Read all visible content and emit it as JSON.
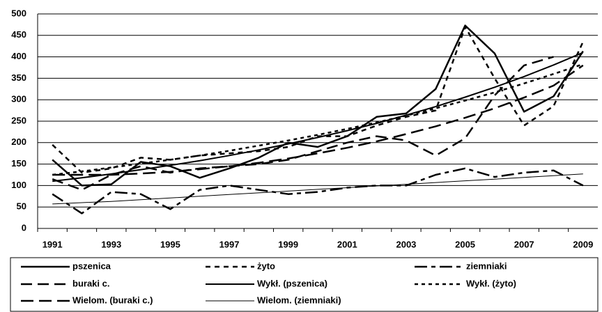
{
  "chart_data": {
    "type": "line",
    "categories": [
      "1991",
      null,
      "1993",
      null,
      "1995",
      null,
      "1997",
      null,
      "1999",
      null,
      "2001",
      null,
      "2003",
      null,
      "2005",
      null,
      "2007",
      null,
      "2009"
    ],
    "ylim": [
      0,
      500
    ],
    "yticks": [
      0,
      50,
      100,
      150,
      200,
      250,
      300,
      350,
      400,
      450,
      500
    ],
    "grid": true,
    "series": [
      {
        "name": "pszenica",
        "color": "#000000",
        "dash": "none",
        "width": 2.5,
        "values": [
          160,
          100,
          103,
          155,
          145,
          118,
          140,
          165,
          200,
          190,
          215,
          260,
          268,
          325,
          473,
          408,
          272,
          308,
          413
        ]
      },
      {
        "name": "żyto",
        "color": "#000000",
        "dash": "7 6",
        "width": 2.5,
        "values": [
          195,
          130,
          140,
          165,
          160,
          170,
          175,
          180,
          190,
          215,
          215,
          240,
          260,
          275,
          470,
          350,
          240,
          285,
          435
        ]
      },
      {
        "name": "ziemniaki",
        "color": "#000000",
        "dash": "18 6 6 6",
        "width": 2.5,
        "values": [
          80,
          35,
          85,
          80,
          45,
          90,
          100,
          90,
          80,
          85,
          95,
          100,
          100,
          125,
          140,
          120,
          130,
          135,
          100
        ]
      },
      {
        "name": "buraki c.",
        "color": "#000000",
        "dash": "16 8",
        "width": 2.5,
        "values": [
          115,
          90,
          125,
          145,
          130,
          140,
          145,
          150,
          160,
          180,
          200,
          215,
          205,
          170,
          210,
          310,
          380,
          400,
          null
        ]
      },
      {
        "name": "Wykł. (pszenica)",
        "color": "#000000",
        "dash": "none",
        "width": 2,
        "values": [
          110,
          118,
          127,
          137,
          147,
          158,
          170,
          183,
          197,
          212,
          228,
          245,
          264,
          284,
          306,
          329,
          354,
          381,
          410
        ]
      },
      {
        "name": "Wykł. (żyto)",
        "color": "#000000",
        "dash": "5 5",
        "width": 2.5,
        "values": [
          125,
          133,
          142,
          151,
          160,
          170,
          181,
          193,
          205,
          218,
          232,
          247,
          263,
          280,
          298,
          317,
          338,
          360,
          383
        ]
      },
      {
        "name": "Wielom. (buraki c.)",
        "color": "#000000",
        "dash": "18 8",
        "width": 2.5,
        "values": [
          125,
          125,
          125,
          128,
          132,
          138,
          145,
          153,
          163,
          175,
          188,
          203,
          220,
          238,
          258,
          280,
          305,
          333,
          380
        ]
      },
      {
        "name": "Wielom. (ziemniaki)",
        "color": "#000000",
        "dash": "none",
        "width": 1,
        "values": [
          57,
          60,
          63,
          67,
          71,
          75,
          79,
          83,
          87,
          91,
          95,
          99,
          103,
          107,
          111,
          115,
          119,
          123,
          127
        ]
      }
    ]
  }
}
